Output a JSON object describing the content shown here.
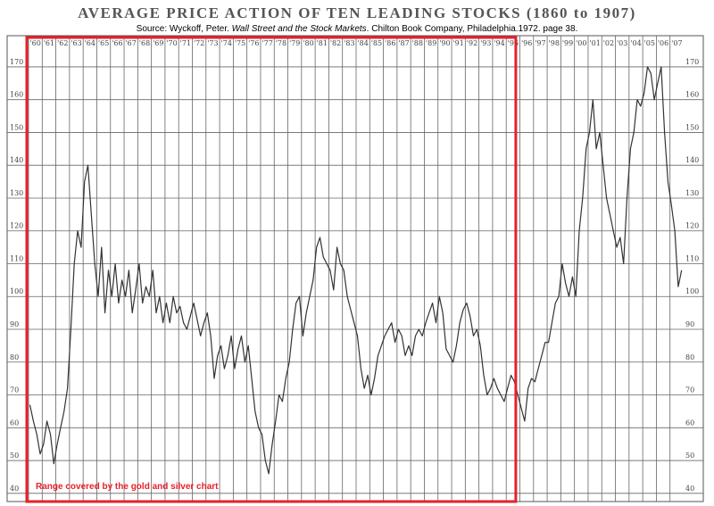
{
  "chart_data": {
    "type": "line",
    "title": "AVERAGE PRICE ACTION OF TEN LEADING STOCKS (1860 to 1907)",
    "subtitle": [
      "Source: Wyckoff, Peter. ",
      "Wall Street and the Stock Markets",
      ". Chilton Book Company, Philadelphia.1972. page 38."
    ],
    "x": [
      1860.1,
      1860.35,
      1860.6,
      1860.85,
      1861.1,
      1861.35,
      1861.6,
      1861.85,
      1862.1,
      1862.35,
      1862.6,
      1862.85,
      1863.1,
      1863.35,
      1863.6,
      1863.85,
      1864.1,
      1864.35,
      1864.6,
      1864.85,
      1865.1,
      1865.35,
      1865.6,
      1865.85,
      1866.1,
      1866.35,
      1866.6,
      1866.85,
      1867.1,
      1867.35,
      1867.6,
      1867.85,
      1868.1,
      1868.35,
      1868.6,
      1868.85,
      1869.1,
      1869.35,
      1869.6,
      1869.85,
      1870.1,
      1870.35,
      1870.6,
      1870.85,
      1871.1,
      1871.35,
      1871.6,
      1871.85,
      1872.1,
      1872.35,
      1872.6,
      1872.85,
      1873.1,
      1873.35,
      1873.6,
      1873.85,
      1874.1,
      1874.35,
      1874.6,
      1874.85,
      1875.1,
      1875.35,
      1875.6,
      1875.85,
      1876.1,
      1876.35,
      1876.6,
      1876.85,
      1877.1,
      1877.35,
      1877.6,
      1877.85,
      1878.1,
      1878.35,
      1878.6,
      1878.85,
      1879.1,
      1879.35,
      1879.6,
      1879.85,
      1880.1,
      1880.35,
      1880.6,
      1880.85,
      1881.1,
      1881.35,
      1881.6,
      1881.85,
      1882.1,
      1882.35,
      1882.6,
      1882.85,
      1883.1,
      1883.35,
      1883.6,
      1883.85,
      1884.1,
      1884.35,
      1884.6,
      1884.85,
      1885.1,
      1885.35,
      1885.6,
      1885.85,
      1886.1,
      1886.35,
      1886.6,
      1886.85,
      1887.1,
      1887.35,
      1887.6,
      1887.85,
      1888.1,
      1888.35,
      1888.6,
      1888.85,
      1889.1,
      1889.35,
      1889.6,
      1889.85,
      1890.1,
      1890.35,
      1890.6,
      1890.85,
      1891.1,
      1891.35,
      1891.6,
      1891.85,
      1892.1,
      1892.35,
      1892.6,
      1892.85,
      1893.1,
      1893.35,
      1893.6,
      1893.85,
      1894.1,
      1894.35,
      1894.6,
      1894.85,
      1895.1,
      1895.35,
      1895.6,
      1895.85,
      1896.1,
      1896.35,
      1896.6,
      1896.85,
      1897.1,
      1897.35,
      1897.6,
      1897.85,
      1898.1,
      1898.35,
      1898.6,
      1898.85,
      1899.1,
      1899.35,
      1899.6,
      1899.85,
      1900.1,
      1900.35,
      1900.6,
      1900.85,
      1901.1,
      1901.35,
      1901.6,
      1901.85,
      1902.1,
      1902.35,
      1902.6,
      1902.85,
      1903.1,
      1903.35,
      1903.6,
      1903.85,
      1904.1,
      1904.35,
      1904.6,
      1904.85,
      1905.1,
      1905.35,
      1905.6,
      1905.85,
      1906.1,
      1906.35,
      1906.6,
      1906.85,
      1907.1,
      1907.35,
      1907.6,
      1907.85
    ],
    "series": [
      {
        "color": "#333333",
        "values": [
          67,
          62,
          58,
          52,
          55,
          62,
          58,
          49,
          55,
          60,
          65,
          72,
          90,
          110,
          120,
          115,
          135,
          140,
          125,
          110,
          100,
          115,
          95,
          108,
          100,
          110,
          98,
          105,
          100,
          108,
          95,
          102,
          110,
          98,
          103,
          100,
          108,
          95,
          100,
          92,
          98,
          92,
          100,
          95,
          97,
          92,
          90,
          94,
          98,
          93,
          88,
          92,
          95,
          88,
          75,
          82,
          85,
          78,
          82,
          88,
          78,
          84,
          88,
          80,
          85,
          75,
          65,
          60,
          58,
          50,
          46,
          55,
          62,
          70,
          68,
          75,
          80,
          90,
          98,
          100,
          88,
          95,
          100,
          105,
          115,
          118,
          112,
          110,
          108,
          102,
          115,
          110,
          108,
          100,
          96,
          92,
          88,
          78,
          72,
          76,
          70,
          75,
          82,
          85,
          88,
          90,
          92,
          86,
          90,
          88,
          82,
          85,
          82,
          88,
          90,
          88,
          92,
          95,
          98,
          92,
          100,
          95,
          84,
          82,
          80,
          85,
          92,
          96,
          98,
          94,
          88,
          90,
          85,
          76,
          70,
          72,
          75,
          72,
          70,
          68,
          72,
          76,
          74,
          70,
          66,
          62,
          72,
          75,
          74,
          78,
          82,
          86,
          86,
          92,
          98,
          100,
          110,
          104,
          100,
          106,
          100,
          120,
          130,
          145,
          150,
          160,
          145,
          150,
          140,
          130,
          125,
          120,
          115,
          118,
          110,
          130,
          145,
          150,
          160,
          158,
          162,
          170,
          168,
          160,
          165,
          170,
          150,
          135,
          128,
          120,
          103,
          108
        ]
      }
    ],
    "xlim": [
      1860,
      1908
    ],
    "xticks": [
      {
        "value": 1860,
        "label": "'60"
      },
      {
        "value": 1861,
        "label": "'61"
      },
      {
        "value": 1862,
        "label": "'62"
      },
      {
        "value": 1863,
        "label": "'63"
      },
      {
        "value": 1864,
        "label": "'64"
      },
      {
        "value": 1865,
        "label": "'65"
      },
      {
        "value": 1866,
        "label": "'66"
      },
      {
        "value": 1867,
        "label": "'67"
      },
      {
        "value": 1868,
        "label": "'68"
      },
      {
        "value": 1869,
        "label": "'69"
      },
      {
        "value": 1870,
        "label": "'70"
      },
      {
        "value": 1871,
        "label": "'71"
      },
      {
        "value": 1872,
        "label": "'72"
      },
      {
        "value": 1873,
        "label": "'73"
      },
      {
        "value": 1874,
        "label": "'74"
      },
      {
        "value": 1875,
        "label": "'75"
      },
      {
        "value": 1876,
        "label": "'76"
      },
      {
        "value": 1877,
        "label": "'77"
      },
      {
        "value": 1878,
        "label": "'78"
      },
      {
        "value": 1879,
        "label": "'79"
      },
      {
        "value": 1880,
        "label": "'80"
      },
      {
        "value": 1881,
        "label": "'81"
      },
      {
        "value": 1882,
        "label": "'82"
      },
      {
        "value": 1883,
        "label": "'83"
      },
      {
        "value": 1884,
        "label": "'84"
      },
      {
        "value": 1885,
        "label": "'85"
      },
      {
        "value": 1886,
        "label": "'86"
      },
      {
        "value": 1887,
        "label": "'87"
      },
      {
        "value": 1888,
        "label": "'88"
      },
      {
        "value": 1889,
        "label": "'89"
      },
      {
        "value": 1890,
        "label": "'90"
      },
      {
        "value": 1891,
        "label": "'91"
      },
      {
        "value": 1892,
        "label": "'92"
      },
      {
        "value": 1893,
        "label": "'93"
      },
      {
        "value": 1894,
        "label": "'94"
      },
      {
        "value": 1895,
        "label": "'95"
      },
      {
        "value": 1896,
        "label": "'96"
      },
      {
        "value": 1897,
        "label": "'97"
      },
      {
        "value": 1898,
        "label": "'98"
      },
      {
        "value": 1899,
        "label": "'99"
      },
      {
        "value": 1900,
        "label": "'00"
      },
      {
        "value": 1901,
        "label": "'01"
      },
      {
        "value": 1902,
        "label": "'02"
      },
      {
        "value": 1903,
        "label": "'03"
      },
      {
        "value": 1904,
        "label": "'04"
      },
      {
        "value": 1905,
        "label": "'05"
      },
      {
        "value": 1906,
        "label": "'06"
      },
      {
        "value": 1907,
        "label": "'07"
      }
    ],
    "ylim": [
      37.5,
      179.5
    ],
    "yticks": [
      40,
      50,
      60,
      70,
      80,
      90,
      100,
      110,
      120,
      130,
      140,
      150,
      160,
      170
    ],
    "grid": true,
    "highlight": {
      "label": "Range covered by the gold and silver chart",
      "xlim": [
        1860,
        1895.7
      ],
      "color": "#e8202a"
    }
  }
}
